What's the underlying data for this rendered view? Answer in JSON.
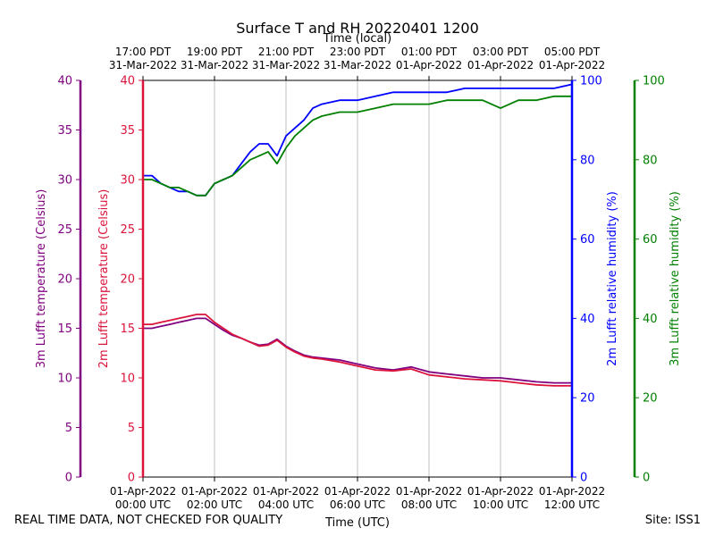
{
  "chart_data": {
    "type": "line",
    "title": "Surface T and RH 20220401 1200",
    "top_axis_label": "Time (local)",
    "xlabel": "Time (UTC)",
    "x_range_hours": [
      0,
      12
    ],
    "x_ticks": [
      {
        "hour": 0,
        "utc": [
          "01-Apr-2022",
          "00:00 UTC"
        ],
        "local": [
          "17:00 PDT",
          "31-Mar-2022"
        ]
      },
      {
        "hour": 2,
        "utc": [
          "01-Apr-2022",
          "02:00 UTC"
        ],
        "local": [
          "19:00 PDT",
          "31-Mar-2022"
        ]
      },
      {
        "hour": 4,
        "utc": [
          "01-Apr-2022",
          "04:00 UTC"
        ],
        "local": [
          "21:00 PDT",
          "31-Mar-2022"
        ]
      },
      {
        "hour": 6,
        "utc": [
          "01-Apr-2022",
          "06:00 UTC"
        ],
        "local": [
          "23:00 PDT",
          "31-Mar-2022"
        ]
      },
      {
        "hour": 8,
        "utc": [
          "01-Apr-2022",
          "08:00 UTC"
        ],
        "local": [
          "01:00 PDT",
          "01-Apr-2022"
        ]
      },
      {
        "hour": 10,
        "utc": [
          "01-Apr-2022",
          "10:00 UTC"
        ],
        "local": [
          "03:00 PDT",
          "01-Apr-2022"
        ]
      },
      {
        "hour": 12,
        "utc": [
          "01-Apr-2022",
          "12:00 UTC"
        ],
        "local": [
          "05:00 PDT",
          "01-Apr-2022"
        ]
      }
    ],
    "grid": "vertical",
    "axes": {
      "t3m": {
        "label": "3m Lufft temperature (Celsius)",
        "color": "#800080",
        "range": [
          0,
          40
        ],
        "ticks": [
          "0",
          "5",
          "10",
          "15",
          "20",
          "25",
          "30",
          "35",
          "40"
        ]
      },
      "t2m": {
        "label": "2m Lufft temperature (Celsius)",
        "color": "#dc143c",
        "range": [
          0,
          40
        ],
        "ticks": [
          "0",
          "5",
          "10",
          "15",
          "20",
          "25",
          "30",
          "35",
          "40"
        ]
      },
      "rh2m": {
        "label": "2m Lufft relative humidity (%)",
        "color": "#0000ff",
        "range": [
          0,
          100
        ],
        "ticks": [
          "0",
          "20",
          "40",
          "60",
          "80",
          "100"
        ]
      },
      "rh3m": {
        "label": "3m Lufft relative humidity (%)",
        "color": "#008000",
        "range": [
          0,
          100
        ],
        "ticks": [
          "0",
          "20",
          "40",
          "60",
          "80",
          "100"
        ]
      }
    },
    "series": [
      {
        "axis": "rh2m",
        "color": "#0000ff",
        "x": [
          0,
          0.25,
          0.5,
          0.75,
          1,
          1.25,
          1.5,
          1.75,
          2,
          2.25,
          2.5,
          2.75,
          3,
          3.25,
          3.5,
          3.75,
          4,
          4.25,
          4.5,
          4.75,
          5,
          5.5,
          6,
          6.5,
          7,
          7.5,
          8,
          8.5,
          9,
          9.5,
          10,
          10.5,
          11,
          11.5,
          12
        ],
        "y": [
          76,
          76,
          74,
          73,
          72,
          72,
          71,
          71,
          74,
          75,
          76,
          79,
          82,
          84,
          84,
          81,
          86,
          88,
          90,
          93,
          94,
          95,
          95,
          96,
          97,
          97,
          97,
          97,
          98,
          98,
          98,
          98,
          98,
          98,
          99
        ]
      },
      {
        "axis": "rh3m",
        "color": "#008000",
        "x": [
          0,
          0.25,
          0.5,
          0.75,
          1,
          1.25,
          1.5,
          1.75,
          2,
          2.25,
          2.5,
          2.75,
          3,
          3.25,
          3.5,
          3.75,
          4,
          4.25,
          4.5,
          4.75,
          5,
          5.5,
          6,
          6.5,
          7,
          7.5,
          8,
          8.5,
          9,
          9.5,
          10,
          10.5,
          11,
          11.5,
          12
        ],
        "y": [
          75,
          75,
          74,
          73,
          73,
          72,
          71,
          71,
          74,
          75,
          76,
          78,
          80,
          81,
          82,
          79,
          83,
          86,
          88,
          90,
          91,
          92,
          92,
          93,
          94,
          94,
          94,
          95,
          95,
          95,
          93,
          95,
          95,
          96,
          96
        ]
      },
      {
        "axis": "t3m",
        "color": "#800080",
        "x": [
          0,
          0.25,
          0.5,
          0.75,
          1,
          1.25,
          1.5,
          1.75,
          2,
          2.25,
          2.5,
          2.75,
          3,
          3.25,
          3.5,
          3.75,
          4,
          4.25,
          4.5,
          4.75,
          5,
          5.5,
          6,
          6.5,
          7,
          7.5,
          8,
          8.5,
          9,
          9.5,
          10,
          10.5,
          11,
          11.5,
          12
        ],
        "y": [
          15.0,
          15.0,
          15.2,
          15.4,
          15.6,
          15.8,
          16.0,
          16.0,
          15.4,
          14.8,
          14.3,
          14.0,
          13.6,
          13.3,
          13.4,
          13.9,
          13.2,
          12.7,
          12.3,
          12.1,
          12.0,
          11.8,
          11.4,
          11.0,
          10.8,
          11.1,
          10.6,
          10.4,
          10.2,
          10.0,
          10.0,
          9.8,
          9.6,
          9.5,
          9.5
        ]
      },
      {
        "axis": "t2m",
        "color": "#dc143c",
        "x": [
          0,
          0.25,
          0.5,
          0.75,
          1,
          1.25,
          1.5,
          1.75,
          2,
          2.25,
          2.5,
          2.75,
          3,
          3.25,
          3.5,
          3.75,
          4,
          4.25,
          4.5,
          4.75,
          5,
          5.5,
          6,
          6.5,
          7,
          7.5,
          8,
          8.5,
          9,
          9.5,
          10,
          10.5,
          11,
          11.5,
          12
        ],
        "y": [
          15.4,
          15.4,
          15.6,
          15.8,
          16.0,
          16.2,
          16.4,
          16.4,
          15.6,
          15.0,
          14.4,
          14.0,
          13.6,
          13.2,
          13.3,
          13.8,
          13.1,
          12.6,
          12.2,
          12.0,
          11.9,
          11.6,
          11.2,
          10.8,
          10.7,
          10.9,
          10.3,
          10.1,
          9.9,
          9.8,
          9.7,
          9.5,
          9.3,
          9.2,
          9.2
        ]
      }
    ]
  },
  "footer": {
    "quality_note": "REAL TIME DATA, NOT CHECKED FOR QUALITY",
    "site": "Site: ISS1"
  }
}
